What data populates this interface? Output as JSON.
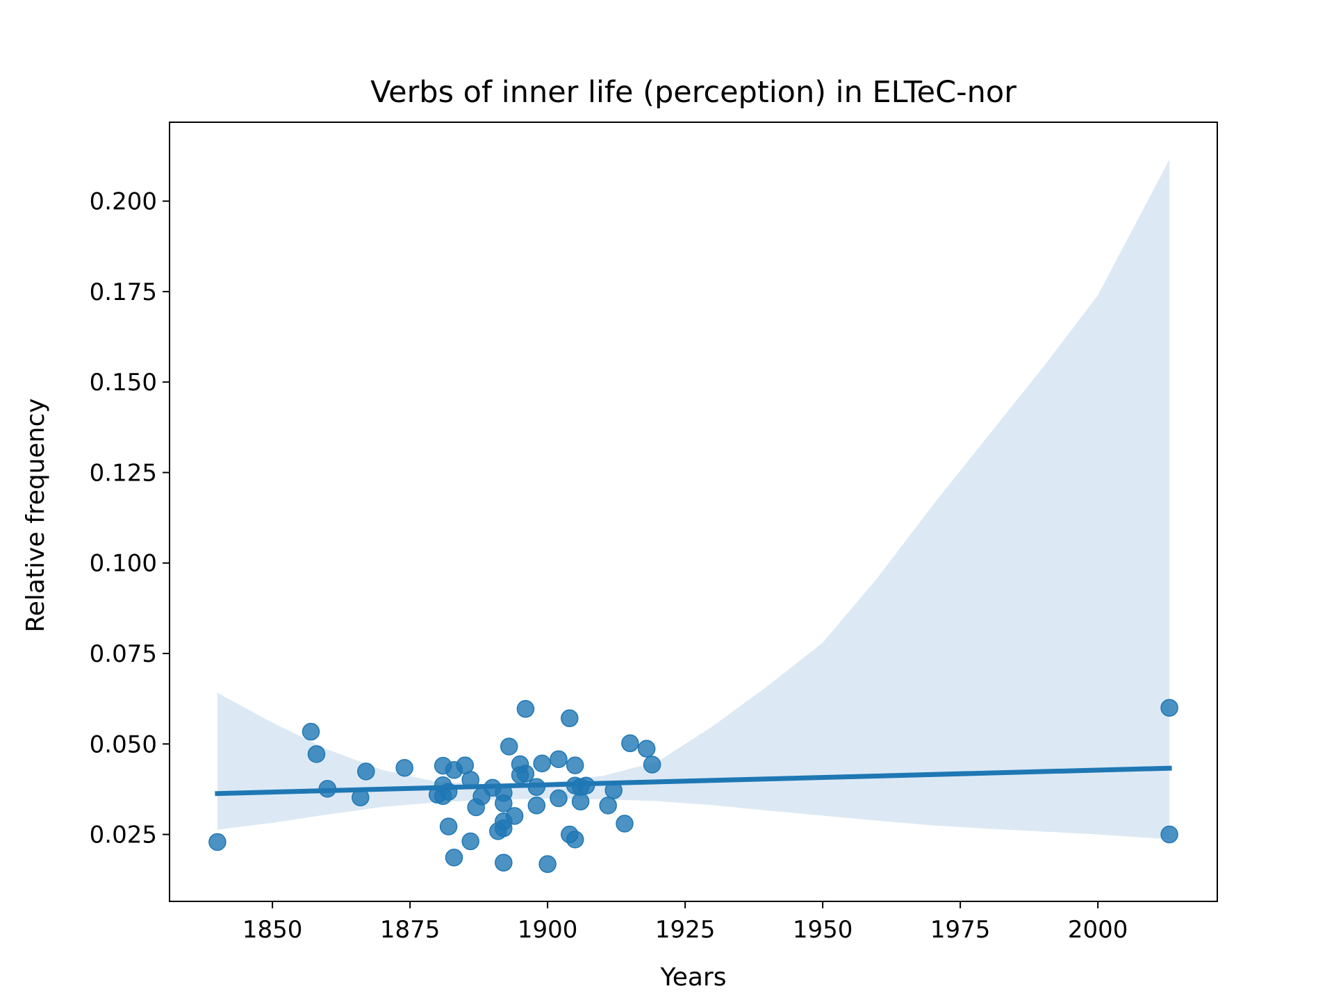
{
  "chart_data": {
    "type": "scatter",
    "title": "Verbs of inner life (perception) in ELTeC-nor",
    "xlabel": "Years",
    "ylabel": "Relative frequency",
    "xlim": [
      1831.3,
      2021.7
    ],
    "ylim": [
      0.0065,
      0.2218
    ],
    "xticks": [
      1850,
      1875,
      1900,
      1925,
      1950,
      1975,
      2000
    ],
    "yticks": [
      0.025,
      0.05,
      0.075,
      0.1,
      0.125,
      0.15,
      0.175,
      0.2
    ],
    "xtick_labels": [
      "1850",
      "1875",
      "1900",
      "1925",
      "1950",
      "1975",
      "2000"
    ],
    "ytick_labels": [
      "0.025",
      "0.050",
      "0.075",
      "0.100",
      "0.125",
      "0.150",
      "0.175",
      "0.200"
    ],
    "grid": false,
    "colors": {
      "points": "#1f77b4",
      "line": "#1f77b4",
      "band": "#dce9f4"
    },
    "points": [
      [
        1840,
        0.0229
      ],
      [
        1857,
        0.0534
      ],
      [
        1858,
        0.0472
      ],
      [
        1860,
        0.0376
      ],
      [
        1866,
        0.0352
      ],
      [
        1867,
        0.0424
      ],
      [
        1874,
        0.0434
      ],
      [
        1880,
        0.036
      ],
      [
        1881,
        0.044
      ],
      [
        1881,
        0.0386
      ],
      [
        1881,
        0.0356
      ],
      [
        1882,
        0.0368
      ],
      [
        1882,
        0.0272
      ],
      [
        1883,
        0.0186
      ],
      [
        1883,
        0.0428
      ],
      [
        1885,
        0.0441
      ],
      [
        1886,
        0.0401
      ],
      [
        1886,
        0.0231
      ],
      [
        1887,
        0.0325
      ],
      [
        1888,
        0.0355
      ],
      [
        1890,
        0.0379
      ],
      [
        1891,
        0.0259
      ],
      [
        1892,
        0.0365
      ],
      [
        1892,
        0.0336
      ],
      [
        1892,
        0.0286
      ],
      [
        1892,
        0.0267
      ],
      [
        1892,
        0.0172
      ],
      [
        1893,
        0.0493
      ],
      [
        1894,
        0.0301
      ],
      [
        1895,
        0.0444
      ],
      [
        1895,
        0.0414
      ],
      [
        1896,
        0.0418
      ],
      [
        1896,
        0.0597
      ],
      [
        1898,
        0.0381
      ],
      [
        1898,
        0.033
      ],
      [
        1899,
        0.0446
      ],
      [
        1900,
        0.0168
      ],
      [
        1902,
        0.0458
      ],
      [
        1902,
        0.035
      ],
      [
        1904,
        0.0571
      ],
      [
        1904,
        0.025
      ],
      [
        1905,
        0.0441
      ],
      [
        1905,
        0.0385
      ],
      [
        1905,
        0.0236
      ],
      [
        1906,
        0.0381
      ],
      [
        1906,
        0.0341
      ],
      [
        1907,
        0.0385
      ],
      [
        1911,
        0.033
      ],
      [
        1912,
        0.0372
      ],
      [
        1914,
        0.028
      ],
      [
        1915,
        0.0502
      ],
      [
        1918,
        0.0487
      ],
      [
        1919,
        0.0443
      ],
      [
        2013,
        0.06
      ],
      [
        2013,
        0.025
      ]
    ],
    "regression_line": {
      "x": [
        1840,
        2013
      ],
      "y": [
        0.0363,
        0.0433
      ]
    },
    "confidence_band": {
      "x": [
        1840,
        1850,
        1860,
        1870,
        1880,
        1890,
        1900,
        1910,
        1920,
        1930,
        1940,
        1950,
        1960,
        1970,
        1980,
        1990,
        2000,
        2013
      ],
      "upper": [
        0.0641,
        0.0559,
        0.0485,
        0.0428,
        0.0395,
        0.0389,
        0.0393,
        0.0412,
        0.0451,
        0.0549,
        0.066,
        0.078,
        0.096,
        0.116,
        0.135,
        0.154,
        0.174,
        0.2115
      ],
      "lower": [
        0.0263,
        0.0282,
        0.0305,
        0.0326,
        0.0339,
        0.0346,
        0.0349,
        0.0347,
        0.0342,
        0.0331,
        0.0316,
        0.0302,
        0.0288,
        0.0275,
        0.0266,
        0.0258,
        0.025,
        0.0237
      ]
    }
  }
}
